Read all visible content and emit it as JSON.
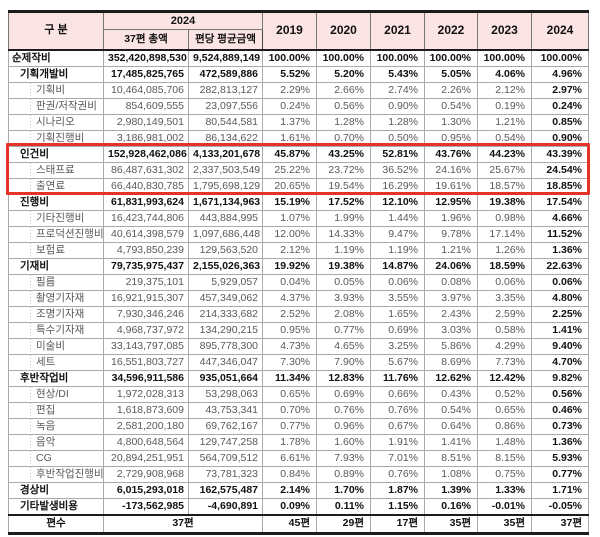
{
  "colors": {
    "header_bg": "#fbe4e4",
    "highlight_border": "#e5332a",
    "subtext": "#595959"
  },
  "table": {
    "header": {
      "category": "구 분",
      "group_2024": "2024",
      "col_total": "37편 총액",
      "col_avg": "편당 평균금액",
      "years": [
        "2019",
        "2020",
        "2021",
        "2022",
        "2023",
        "2024"
      ]
    },
    "rows": [
      {
        "label": "순제작비",
        "lv": 0,
        "grp": true,
        "hl": false,
        "total": "352,420,898,530",
        "avg": "9,524,889,149",
        "pct": [
          "100.00%",
          "100.00%",
          "100.00%",
          "100.00%",
          "100.00%",
          "100.00%"
        ]
      },
      {
        "label": "기획개발비",
        "lv": 1,
        "grp": true,
        "hl": false,
        "total": "17,485,825,765",
        "avg": "472,589,886",
        "pct": [
          "5.52%",
          "5.20%",
          "5.43%",
          "5.05%",
          "4.06%",
          "4.96%"
        ]
      },
      {
        "label": "기획비",
        "lv": 2,
        "grp": false,
        "hl": false,
        "total": "10,464,085,706",
        "avg": "282,813,127",
        "pct": [
          "2.29%",
          "2.66%",
          "2.74%",
          "2.26%",
          "2.12%",
          "2.97%"
        ]
      },
      {
        "label": "판권/저작권비",
        "lv": 2,
        "grp": false,
        "hl": false,
        "total": "854,609,555",
        "avg": "23,097,556",
        "pct": [
          "0.24%",
          "0.56%",
          "0.90%",
          "0.54%",
          "0.19%",
          "0.24%"
        ]
      },
      {
        "label": "시나리오",
        "lv": 2,
        "grp": false,
        "hl": false,
        "total": "2,980,149,501",
        "avg": "80,544,581",
        "pct": [
          "1.37%",
          "1.28%",
          "1.28%",
          "1.30%",
          "1.21%",
          "0.85%"
        ]
      },
      {
        "label": "기획진행비",
        "lv": 2,
        "grp": false,
        "hl": false,
        "total": "3,186,981,002",
        "avg": "86,134,622",
        "pct": [
          "1.61%",
          "0.70%",
          "0.50%",
          "0.95%",
          "0.54%",
          "0.90%"
        ]
      },
      {
        "label": "인건비",
        "lv": 1,
        "grp": true,
        "hl": true,
        "total": "152,928,462,086",
        "avg": "4,133,201,678",
        "pct": [
          "45.87%",
          "43.25%",
          "52.81%",
          "43.76%",
          "44.23%",
          "43.39%"
        ]
      },
      {
        "label": "스태프료",
        "lv": 2,
        "grp": false,
        "hl": true,
        "total": "86,487,631,302",
        "avg": "2,337,503,549",
        "pct": [
          "25.22%",
          "23.72%",
          "36.52%",
          "24.16%",
          "25.67%",
          "24.54%"
        ]
      },
      {
        "label": "출연료",
        "lv": 2,
        "grp": false,
        "hl": true,
        "total": "66,440,830,785",
        "avg": "1,795,698,129",
        "pct": [
          "20.65%",
          "19.54%",
          "16.29%",
          "19.61%",
          "18.57%",
          "18.85%"
        ]
      },
      {
        "label": "진행비",
        "lv": 1,
        "grp": true,
        "hl": false,
        "total": "61,831,993,624",
        "avg": "1,671,134,963",
        "pct": [
          "15.19%",
          "17.52%",
          "12.10%",
          "12.95%",
          "19.38%",
          "17.54%"
        ]
      },
      {
        "label": "기타진행비",
        "lv": 2,
        "grp": false,
        "hl": false,
        "total": "16,423,744,806",
        "avg": "443,884,995",
        "pct": [
          "1.07%",
          "1.99%",
          "1.44%",
          "1.96%",
          "0.98%",
          "4.66%"
        ]
      },
      {
        "label": "프로덕션진행비",
        "lv": 2,
        "grp": false,
        "hl": false,
        "total": "40,614,398,579",
        "avg": "1,097,686,448",
        "pct": [
          "12.00%",
          "14.33%",
          "9.47%",
          "9.78%",
          "17.14%",
          "11.52%"
        ]
      },
      {
        "label": "보험료",
        "lv": 2,
        "grp": false,
        "hl": false,
        "total": "4,793,850,239",
        "avg": "129,563,520",
        "pct": [
          "2.12%",
          "1.19%",
          "1.19%",
          "1.21%",
          "1.26%",
          "1.36%"
        ]
      },
      {
        "label": "기재비",
        "lv": 1,
        "grp": true,
        "hl": false,
        "total": "79,735,975,437",
        "avg": "2,155,026,363",
        "pct": [
          "19.92%",
          "19.38%",
          "14.87%",
          "24.06%",
          "18.59%",
          "22.63%"
        ]
      },
      {
        "label": "필름",
        "lv": 2,
        "grp": false,
        "hl": false,
        "total": "219,375,101",
        "avg": "5,929,057",
        "pct": [
          "0.04%",
          "0.05%",
          "0.06%",
          "0.08%",
          "0.06%",
          "0.06%"
        ]
      },
      {
        "label": "촬영기자재",
        "lv": 2,
        "grp": false,
        "hl": false,
        "total": "16,921,915,307",
        "avg": "457,349,062",
        "pct": [
          "4.37%",
          "3.93%",
          "3.55%",
          "3.97%",
          "3.35%",
          "4.80%"
        ]
      },
      {
        "label": "조명기자재",
        "lv": 2,
        "grp": false,
        "hl": false,
        "total": "7,930,346,246",
        "avg": "214,333,682",
        "pct": [
          "2.52%",
          "2.08%",
          "1.65%",
          "2.43%",
          "2.59%",
          "2.25%"
        ]
      },
      {
        "label": "특수기자재",
        "lv": 2,
        "grp": false,
        "hl": false,
        "total": "4,968,737,972",
        "avg": "134,290,215",
        "pct": [
          "0.95%",
          "0.77%",
          "0.69%",
          "3.03%",
          "0.58%",
          "1.41%"
        ]
      },
      {
        "label": "미술비",
        "lv": 2,
        "grp": false,
        "hl": false,
        "total": "33,143,797,085",
        "avg": "895,778,300",
        "pct": [
          "4.73%",
          "4.65%",
          "3.25%",
          "5.86%",
          "4.29%",
          "9.40%"
        ]
      },
      {
        "label": "세트",
        "lv": 2,
        "grp": false,
        "hl": false,
        "total": "16,551,803,727",
        "avg": "447,346,047",
        "pct": [
          "7.30%",
          "7.90%",
          "5.67%",
          "8.69%",
          "7.73%",
          "4.70%"
        ]
      },
      {
        "label": "후반작업비",
        "lv": 1,
        "grp": true,
        "hl": false,
        "total": "34,596,911,586",
        "avg": "935,051,664",
        "pct": [
          "11.34%",
          "12.83%",
          "11.76%",
          "12.62%",
          "12.42%",
          "9.82%"
        ]
      },
      {
        "label": "현상/DI",
        "lv": 2,
        "grp": false,
        "hl": false,
        "total": "1,972,028,313",
        "avg": "53,298,063",
        "pct": [
          "0.65%",
          "0.69%",
          "0.66%",
          "0.43%",
          "0.52%",
          "0.56%"
        ]
      },
      {
        "label": "편집",
        "lv": 2,
        "grp": false,
        "hl": false,
        "total": "1,618,873,609",
        "avg": "43,753,341",
        "pct": [
          "0.70%",
          "0.76%",
          "0.76%",
          "0.54%",
          "0.65%",
          "0.46%"
        ]
      },
      {
        "label": "녹음",
        "lv": 2,
        "grp": false,
        "hl": false,
        "total": "2,581,200,180",
        "avg": "69,762,167",
        "pct": [
          "0.77%",
          "0.96%",
          "0.67%",
          "0.64%",
          "0.86%",
          "0.73%"
        ]
      },
      {
        "label": "음악",
        "lv": 2,
        "grp": false,
        "hl": false,
        "total": "4,800,648,564",
        "avg": "129,747,258",
        "pct": [
          "1.78%",
          "1.60%",
          "1.91%",
          "1.41%",
          "1.48%",
          "1.36%"
        ]
      },
      {
        "label": "CG",
        "lv": 2,
        "grp": false,
        "hl": false,
        "total": "20,894,251,951",
        "avg": "564,709,512",
        "pct": [
          "6.61%",
          "7.93%",
          "7.01%",
          "8.51%",
          "8.15%",
          "5.93%"
        ]
      },
      {
        "label": "후반작업진행비",
        "lv": 2,
        "grp": false,
        "hl": false,
        "total": "2,729,908,968",
        "avg": "73,781,323",
        "pct": [
          "0.84%",
          "0.89%",
          "0.76%",
          "1.08%",
          "0.75%",
          "0.77%"
        ]
      },
      {
        "label": "경상비",
        "lv": 1,
        "grp": true,
        "hl": false,
        "total": "6,015,293,018",
        "avg": "162,575,487",
        "pct": [
          "2.14%",
          "1.70%",
          "1.87%",
          "1.39%",
          "1.33%",
          "1.71%"
        ]
      },
      {
        "label": "기타발생비용",
        "lv": 1,
        "grp": true,
        "hl": false,
        "total": "-173,562,985",
        "avg": "-4,690,891",
        "pct": [
          "0.09%",
          "0.11%",
          "1.15%",
          "0.16%",
          "-0.01%",
          "-0.05%"
        ]
      }
    ],
    "footer": {
      "label": "편수",
      "total_span": "37편",
      "values": [
        "45편",
        "29편",
        "17편",
        "35편",
        "35편",
        "37편"
      ]
    }
  }
}
